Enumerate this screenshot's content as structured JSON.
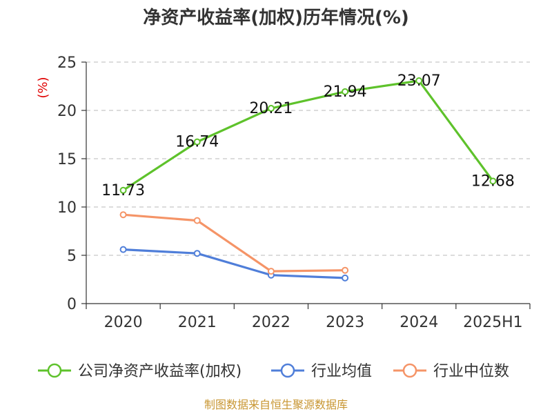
{
  "chart_data": {
    "type": "line",
    "title": "净资产收益率(加权)历年情况(%)",
    "ylabel": "(%)",
    "xlabel": "",
    "categories": [
      "2020",
      "2021",
      "2022",
      "2023",
      "2024",
      "2025H1"
    ],
    "ylim": [
      0,
      25
    ],
    "yticks": [
      0,
      5,
      10,
      15,
      20,
      25
    ],
    "grid": true,
    "legend_position": "bottom",
    "series": [
      {
        "name": "公司净资产收益率(加权)",
        "color": "#5ec22b",
        "values": [
          11.73,
          16.74,
          20.21,
          21.94,
          23.07,
          12.68
        ],
        "show_labels": true
      },
      {
        "name": "行业均值",
        "color": "#4f7ed9",
        "values": [
          5.6,
          5.2,
          2.95,
          2.65,
          null,
          null
        ],
        "show_labels": false
      },
      {
        "name": "行业中位数",
        "color": "#f59467",
        "values": [
          9.2,
          8.6,
          3.35,
          3.45,
          null,
          null
        ],
        "show_labels": false
      }
    ]
  },
  "source_text": "制图数据来自恒生聚源数据库"
}
